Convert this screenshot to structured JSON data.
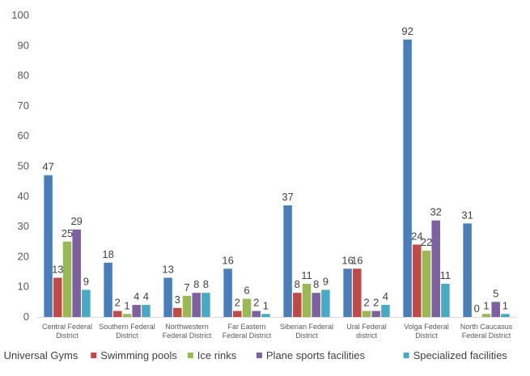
{
  "chart_data": {
    "type": "bar",
    "title": "",
    "xlabel": "",
    "ylabel": "",
    "ylim": [
      0,
      100
    ],
    "yticks": [
      0,
      10,
      20,
      30,
      40,
      50,
      60,
      70,
      80,
      90,
      100
    ],
    "grid": false,
    "legend_position": "bottom",
    "categories": [
      [
        "Central Federal",
        "District"
      ],
      [
        "Southern Federal",
        "District"
      ],
      [
        "Northwestern",
        "Federal District"
      ],
      [
        "Far Eastern",
        "Federal District"
      ],
      [
        "Siberian Federal",
        "District"
      ],
      [
        "Ural Federal",
        "district"
      ],
      [
        "Volga Federal",
        "District"
      ],
      [
        "North Caucasus",
        "Federal District"
      ]
    ],
    "series": [
      {
        "name": "Universal Gyms",
        "color": "#4a7ebb",
        "values": [
          47,
          18,
          13,
          16,
          37,
          16,
          92,
          31
        ]
      },
      {
        "name": "Swimming pools",
        "color": "#be4b48",
        "values": [
          13,
          2,
          3,
          2,
          8,
          16,
          24,
          0
        ]
      },
      {
        "name": "Ice rinks",
        "color": "#98b954",
        "values": [
          25,
          1,
          7,
          6,
          11,
          2,
          22,
          1
        ]
      },
      {
        "name": "Plane sports facilities",
        "color": "#7d60a0",
        "values": [
          29,
          4,
          8,
          2,
          8,
          2,
          32,
          5
        ]
      },
      {
        "name": "Specialized facilities",
        "color": "#46aac5",
        "values": [
          9,
          4,
          8,
          1,
          9,
          4,
          11,
          1
        ]
      }
    ]
  }
}
